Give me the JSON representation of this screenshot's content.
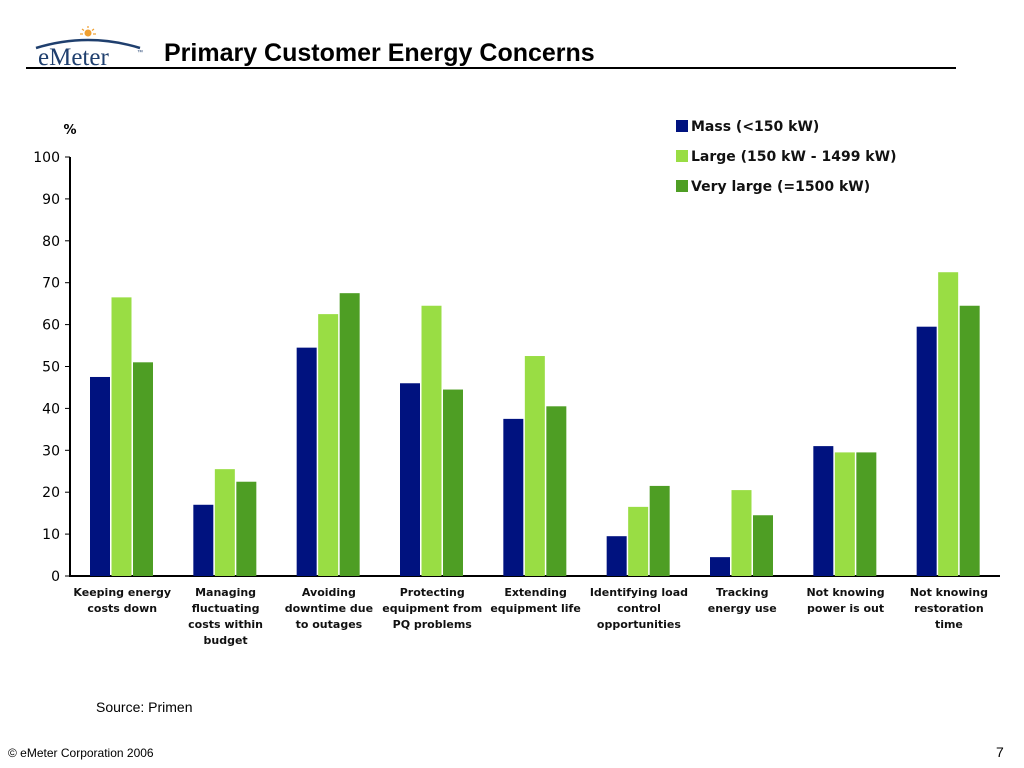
{
  "header": {
    "logo_text": "eMeter",
    "logo_tm": "™",
    "title": "Primary Customer Energy Concerns"
  },
  "footer": {
    "source": "Source: Primen",
    "copyright": "© eMeter Corporation 2006",
    "page_number": "7"
  },
  "colors": {
    "mass": "#00127f",
    "large": "#99dd44",
    "very_large": "#4e9e24",
    "logo_blue": "#1f3f6e",
    "logo_sun": "#f0a030"
  },
  "chart_data": {
    "type": "bar",
    "title": "",
    "xlabel": "",
    "ylabel": "%",
    "ylim": [
      0,
      100
    ],
    "yticks": [
      0,
      10,
      20,
      30,
      40,
      50,
      60,
      70,
      80,
      90,
      100
    ],
    "grid": false,
    "legend_position": "top-right",
    "categories": [
      [
        "Keeping energy",
        "costs down"
      ],
      [
        "Managing",
        "fluctuating",
        "costs within",
        "budget"
      ],
      [
        "Avoiding",
        "downtime due",
        "to outages"
      ],
      [
        "Protecting",
        "equipment from",
        "PQ problems"
      ],
      [
        "Extending",
        "equipment life"
      ],
      [
        "Identifying load",
        "control",
        "opportunities"
      ],
      [
        "Tracking",
        "energy use"
      ],
      [
        "Not knowing",
        "power is out"
      ],
      [
        "Not knowing",
        "restoration",
        "time"
      ]
    ],
    "series": [
      {
        "name": "Mass (<150 kW)",
        "color": "#00127f",
        "values": [
          47.5,
          17,
          54.5,
          46,
          37.5,
          9.5,
          4.5,
          31,
          59.5
        ]
      },
      {
        "name": "Large (150 kW - 1499 kW)",
        "color": "#99dd44",
        "values": [
          66.5,
          25.5,
          62.5,
          64.5,
          52.5,
          16.5,
          20.5,
          29.5,
          72.5
        ]
      },
      {
        "name": "Very large (=1500 kW)",
        "color": "#4e9e24",
        "values": [
          51,
          22.5,
          67.5,
          44.5,
          40.5,
          21.5,
          14.5,
          29.5,
          64.5
        ]
      }
    ]
  }
}
